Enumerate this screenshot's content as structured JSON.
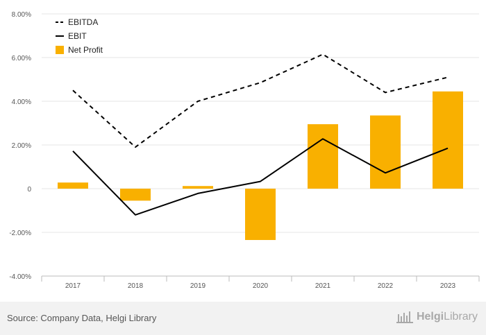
{
  "chart_data": {
    "type": "bar",
    "categories": [
      "2017",
      "2018",
      "2019",
      "2020",
      "2021",
      "2022",
      "2023"
    ],
    "ylim": [
      -4,
      8
    ],
    "yticks": [
      -4,
      -2,
      0,
      2,
      4,
      6,
      8
    ],
    "ytick_labels": [
      "-4.00%",
      "-2.00%",
      "0",
      "2.00%",
      "4.00%",
      "6.00%",
      "8.00%"
    ],
    "grid": true,
    "legend_position": "top-left",
    "series": [
      {
        "name": "EBITDA",
        "type": "line",
        "style": "dashed",
        "color": "#000000",
        "values": [
          4.5,
          1.9,
          4.0,
          4.85,
          6.15,
          4.4,
          5.1
        ]
      },
      {
        "name": "EBIT",
        "type": "line",
        "style": "solid",
        "color": "#000000",
        "values": [
          1.72,
          -1.2,
          -0.22,
          0.33,
          2.28,
          0.72,
          1.85
        ]
      },
      {
        "name": "Net Profit",
        "type": "bar",
        "color": "#f9b000",
        "values": [
          0.28,
          -0.55,
          0.12,
          -2.35,
          2.95,
          3.35,
          4.45
        ]
      }
    ]
  },
  "footer": {
    "source": "Source: Company Data, Helgi Library",
    "brand_left": "Helgi",
    "brand_right": "Library"
  }
}
